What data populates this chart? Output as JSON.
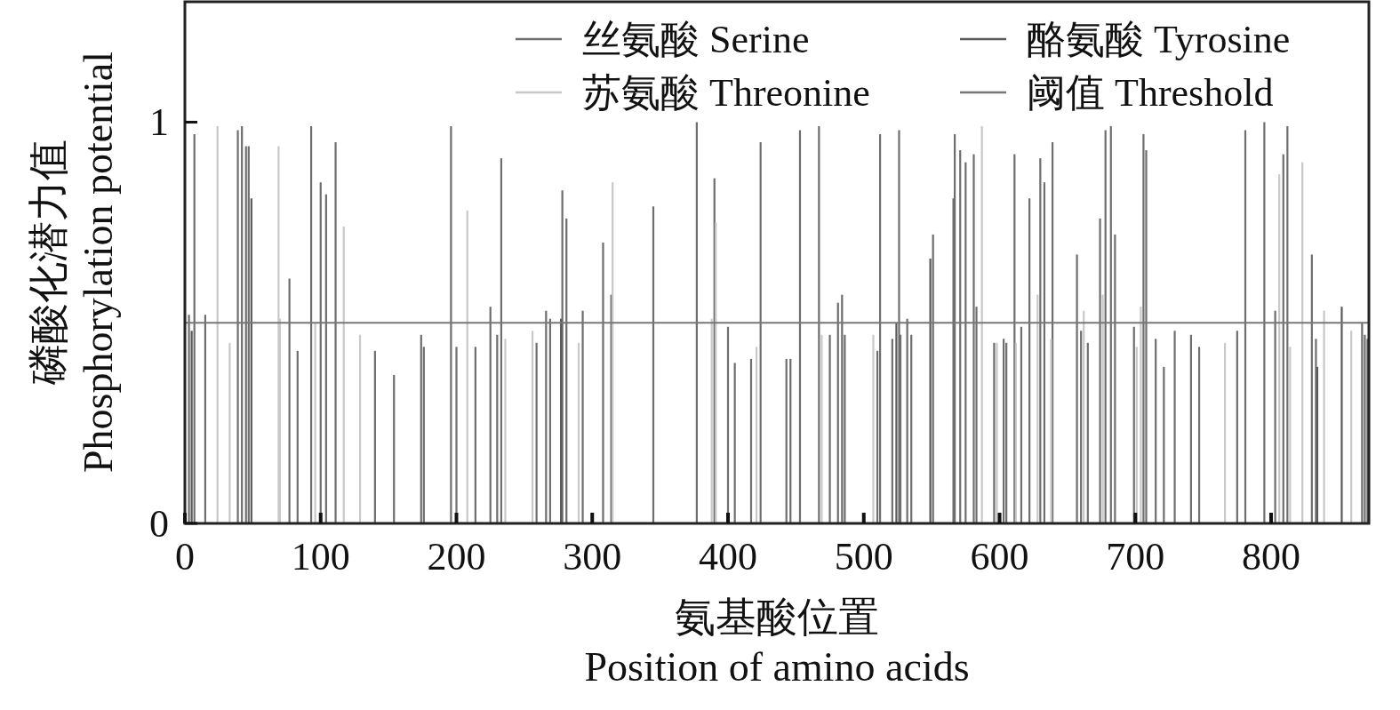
{
  "chart_data": {
    "type": "bar",
    "xlabel": "氨基酸位置\nPosition of amino acids",
    "ylabel": "磷酸化潜力值\nPhosphorylation potential",
    "xlim": [
      0,
      872
    ],
    "xticks": [
      0,
      100,
      200,
      300,
      400,
      500,
      600,
      700,
      800
    ],
    "ylim": [
      0,
      1.3
    ],
    "yticks": [
      0,
      1
    ],
    "legend": "top right",
    "grid": false,
    "series": [
      {
        "name": "丝氨酸 Serine",
        "color": "#6e6e6e",
        "x": [
          3,
          7,
          15,
          39,
          42,
          45,
          47,
          77,
          83,
          93,
          100,
          104,
          111,
          140,
          154,
          174,
          176,
          196,
          200,
          214,
          225,
          230,
          233,
          259,
          266,
          269,
          278,
          281,
          293,
          308,
          314,
          345,
          377,
          390,
          400,
          405,
          417,
          424,
          443,
          446,
          453,
          467,
          475,
          481,
          484,
          486,
          510,
          512,
          521,
          526,
          527,
          532,
          535,
          551,
          566,
          567,
          571,
          575,
          581,
          583,
          596,
          603,
          605,
          611,
          616,
          622,
          630,
          633,
          639,
          657,
          660,
          665,
          674,
          678,
          682,
          685,
          699,
          706,
          708,
          715,
          721,
          729,
          741,
          747,
          775,
          781,
          795,
          803,
          809,
          812,
          830,
          833,
          867,
          869,
          871
        ],
        "values": [
          0.52,
          0.97,
          0.52,
          0.98,
          0.99,
          0.94,
          0.94,
          0.61,
          0.43,
          0.99,
          0.85,
          0.82,
          0.95,
          0.43,
          0.37,
          0.47,
          0.44,
          0.99,
          0.44,
          0.44,
          0.54,
          0.47,
          0.91,
          0.45,
          0.53,
          0.51,
          0.83,
          0.76,
          0.53,
          0.7,
          0.57,
          0.79,
          1.0,
          0.86,
          0.49,
          0.4,
          0.41,
          0.95,
          0.41,
          0.41,
          0.98,
          0.99,
          0.47,
          0.55,
          0.57,
          0.47,
          0.43,
          0.97,
          0.46,
          0.98,
          0.47,
          0.51,
          0.47,
          0.72,
          0.81,
          0.97,
          0.93,
          0.9,
          0.92,
          0.54,
          0.45,
          0.46,
          0.45,
          0.92,
          0.49,
          0.81,
          0.91,
          0.85,
          0.95,
          0.67,
          0.48,
          0.45,
          0.76,
          0.98,
          0.99,
          0.72,
          0.49,
          0.97,
          0.93,
          0.46,
          0.39,
          0.48,
          0.47,
          0.44,
          0.48,
          0.98,
          1.0,
          0.53,
          0.92,
          0.99,
          0.67,
          0.46,
          0.5,
          0.47,
          0.46
        ]
      },
      {
        "name": "酪氨酸 Tyrosine",
        "color": "#5a5a5a",
        "x": [
          5,
          49,
          277,
          524,
          549,
          834,
          852
        ],
        "values": [
          0.48,
          0.81,
          0.51,
          0.5,
          0.66,
          0.39,
          0.54
        ]
      },
      {
        "name": "苏氨酸 Threonine",
        "color": "#c8c8c8",
        "x": [
          24,
          33,
          69,
          70,
          96,
          117,
          129,
          208,
          236,
          256,
          290,
          315,
          388,
          391,
          421,
          469,
          507,
          587,
          598,
          612,
          628,
          638,
          662,
          676,
          701,
          704,
          766,
          806,
          814,
          823,
          839,
          859
        ],
        "values": [
          0.99,
          0.45,
          0.94,
          0.51,
          0.5,
          0.74,
          0.47,
          0.78,
          0.46,
          0.48,
          0.45,
          0.85,
          0.51,
          0.75,
          0.44,
          0.47,
          0.47,
          0.99,
          0.45,
          0.45,
          0.57,
          0.46,
          0.53,
          0.57,
          0.44,
          0.54,
          0.45,
          0.87,
          0.44,
          0.9,
          0.53,
          0.48
        ]
      }
    ],
    "ref_lines": [
      {
        "axis": "y",
        "value": 0.5,
        "label": "阈值 Threshold",
        "color": "#777777",
        "line_style": "solid"
      }
    ]
  }
}
